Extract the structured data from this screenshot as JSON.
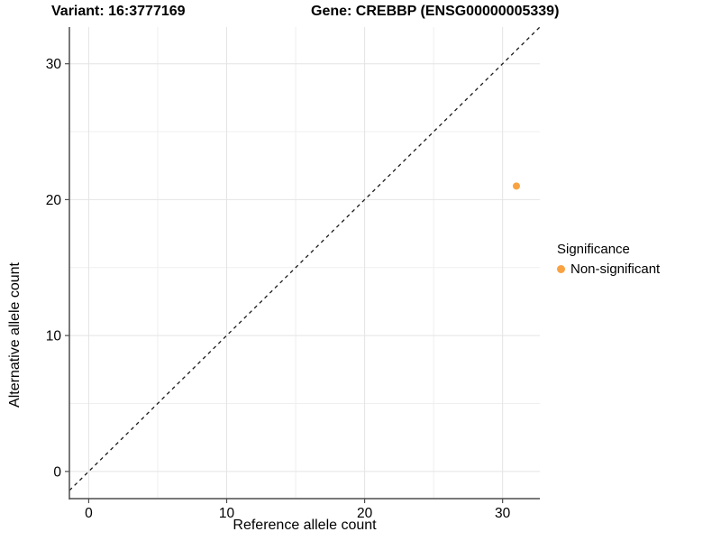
{
  "titles": {
    "variant": "Variant: 16:3777169",
    "gene": "Gene: CREBBP (ENSG00000005339)"
  },
  "legend": {
    "title": "Significance",
    "items": [
      {
        "label": "Non-significant",
        "color": "#F9A242"
      }
    ]
  },
  "chart_data": {
    "type": "scatter",
    "title_left": "Variant: 16:3777169",
    "title_right": "Gene: CREBBP (ENSG00000005339)",
    "xlabel": "Reference allele count",
    "ylabel": "Alternative allele count",
    "series": [
      {
        "name": "Non-significant",
        "color": "#F9A242",
        "points": [
          {
            "x": 31,
            "y": 21
          }
        ]
      }
    ],
    "x_ticks": [
      0,
      10,
      20,
      30
    ],
    "y_ticks": [
      0,
      10,
      20,
      30
    ],
    "x_minor_ticks": [
      5,
      15,
      25
    ],
    "y_minor_ticks": [
      5,
      15,
      25
    ],
    "xlim": [
      -1.4,
      32.7
    ],
    "ylim": [
      -2.0,
      32.7
    ],
    "grid": "major+minor",
    "legend_position": "right",
    "identity_line": {
      "style": "dashed",
      "slope": 1,
      "intercept": 0
    }
  },
  "colors": {
    "point": "#F9A242",
    "grid_major": "#e4e4e4",
    "grid_minor": "#efefef",
    "axis_line": "#4d4d4d",
    "identity_line": "#1a1a1a",
    "text": "#000000"
  }
}
